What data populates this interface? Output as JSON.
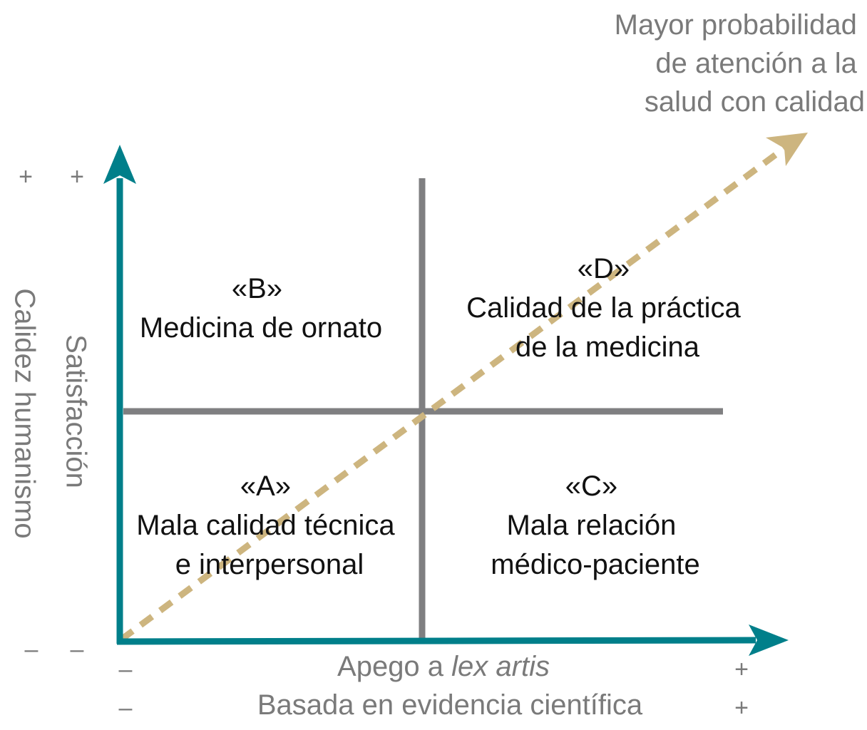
{
  "colors": {
    "axis": "#007f8a",
    "divider": "#7f7f81",
    "trend_arrow": "#cdb57f",
    "text_dark": "#111111",
    "text_grey": "#7a7a7a"
  },
  "trend": {
    "label_lines": [
      "Mayor probabilidad",
      "de atención a la",
      "salud con calidad"
    ]
  },
  "y_axis": {
    "outer_label": "Calidez humanismo",
    "inner_label": "Satisfacción",
    "outer_high_sign": "+",
    "inner_high_sign": "+",
    "outer_low_sign": "–",
    "inner_low_sign": "–"
  },
  "x_axis": {
    "label1_prefix": "Apego a ",
    "label1_italic": "lex artis",
    "label2": "Basada en evidencia científica",
    "label1_low_sign": "–",
    "label1_high_sign": "+",
    "label2_low_sign": "–",
    "label2_high_sign": "+"
  },
  "quadrants": {
    "A": {
      "tag": "«A»",
      "lines": [
        "Mala calidad técnica",
        "e interpersonal"
      ]
    },
    "B": {
      "tag": "«B»",
      "lines": [
        "Medicina de ornato"
      ]
    },
    "C": {
      "tag": "«C»",
      "lines": [
        "Mala relación",
        "médico-paciente"
      ]
    },
    "D": {
      "tag": "«D»",
      "lines": [
        "Calidad de la práctica",
        "de la medicina"
      ]
    }
  }
}
